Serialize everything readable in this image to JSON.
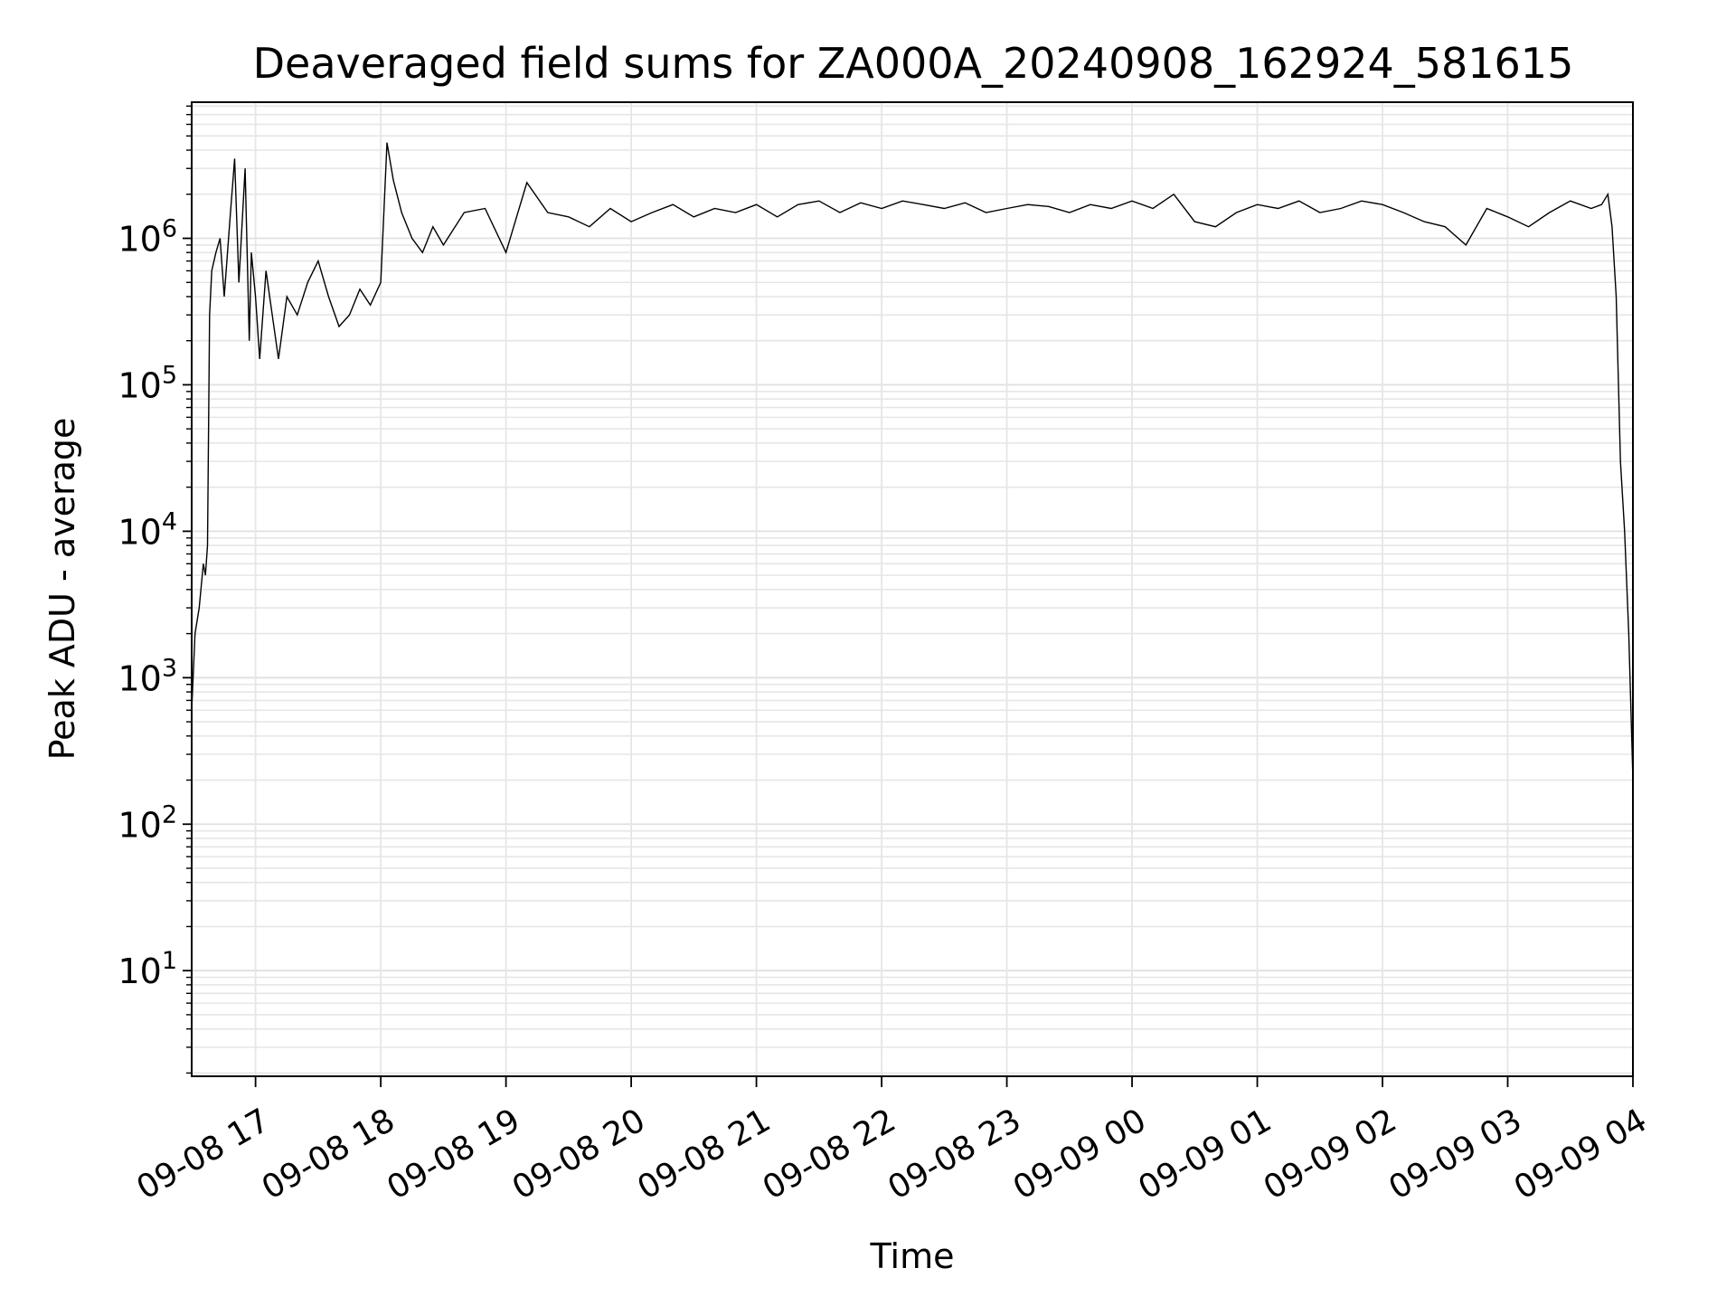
{
  "chart_data": {
    "type": "line",
    "title": "Deaveraged field sums for ZA000A_20240908_162924_581615",
    "xlabel": "Time",
    "ylabel": "Peak ADU - average",
    "y_scale": "log",
    "ylim": [
      1.9,
      8500000
    ],
    "xlim": [
      "2024-09-08T16:29:24",
      "2024-09-09T04:00:00"
    ],
    "grid": true,
    "legend": "none",
    "line_color": "#000000",
    "x_ticks": [
      {
        "value": "2024-09-08T17:00:00",
        "label": "09-08 17"
      },
      {
        "value": "2024-09-08T18:00:00",
        "label": "09-08 18"
      },
      {
        "value": "2024-09-08T19:00:00",
        "label": "09-08 19"
      },
      {
        "value": "2024-09-08T20:00:00",
        "label": "09-08 20"
      },
      {
        "value": "2024-09-08T21:00:00",
        "label": "09-08 21"
      },
      {
        "value": "2024-09-08T22:00:00",
        "label": "09-08 22"
      },
      {
        "value": "2024-09-08T23:00:00",
        "label": "09-08 23"
      },
      {
        "value": "2024-09-09T00:00:00",
        "label": "09-09 00"
      },
      {
        "value": "2024-09-09T01:00:00",
        "label": "09-09 01"
      },
      {
        "value": "2024-09-09T02:00:00",
        "label": "09-09 02"
      },
      {
        "value": "2024-09-09T03:00:00",
        "label": "09-09 03"
      },
      {
        "value": "2024-09-09T04:00:00",
        "label": "09-09 04"
      }
    ],
    "y_ticks": [
      {
        "value": 10,
        "base": "10",
        "exp": "1"
      },
      {
        "value": 100,
        "base": "10",
        "exp": "2"
      },
      {
        "value": 1000,
        "base": "10",
        "exp": "3"
      },
      {
        "value": 10000,
        "base": "10",
        "exp": "4"
      },
      {
        "value": 100000,
        "base": "10",
        "exp": "5"
      },
      {
        "value": 1000000,
        "base": "10",
        "exp": "6"
      }
    ],
    "series": [
      {
        "x": [
          "2024-09-08T16:29:24",
          "2024-09-08T16:31:00",
          "2024-09-08T16:33:00",
          "2024-09-08T16:35:00",
          "2024-09-08T16:36:00",
          "2024-09-08T16:37:00",
          "2024-09-08T16:38:00",
          "2024-09-08T16:39:00",
          "2024-09-08T16:41:00",
          "2024-09-08T16:43:00",
          "2024-09-08T16:45:00",
          "2024-09-08T16:48:00",
          "2024-09-08T16:50:00",
          "2024-09-08T16:52:00",
          "2024-09-08T16:55:00",
          "2024-09-08T16:57:00",
          "2024-09-08T16:58:00",
          "2024-09-08T17:00:00",
          "2024-09-08T17:02:00",
          "2024-09-08T17:05:00",
          "2024-09-08T17:08:00",
          "2024-09-08T17:11:00",
          "2024-09-08T17:15:00",
          "2024-09-08T17:20:00",
          "2024-09-08T17:25:00",
          "2024-09-08T17:30:00",
          "2024-09-08T17:35:00",
          "2024-09-08T17:40:00",
          "2024-09-08T17:45:00",
          "2024-09-08T17:50:00",
          "2024-09-08T17:55:00",
          "2024-09-08T18:00:00",
          "2024-09-08T18:03:00",
          "2024-09-08T18:06:00",
          "2024-09-08T18:10:00",
          "2024-09-08T18:15:00",
          "2024-09-08T18:20:00",
          "2024-09-08T18:25:00",
          "2024-09-08T18:30:00",
          "2024-09-08T18:40:00",
          "2024-09-08T18:50:00",
          "2024-09-08T19:00:00",
          "2024-09-08T19:10:00",
          "2024-09-08T19:20:00",
          "2024-09-08T19:30:00",
          "2024-09-08T19:40:00",
          "2024-09-08T19:50:00",
          "2024-09-08T20:00:00",
          "2024-09-08T20:10:00",
          "2024-09-08T20:20:00",
          "2024-09-08T20:30:00",
          "2024-09-08T20:40:00",
          "2024-09-08T20:50:00",
          "2024-09-08T21:00:00",
          "2024-09-08T21:10:00",
          "2024-09-08T21:20:00",
          "2024-09-08T21:30:00",
          "2024-09-08T21:40:00",
          "2024-09-08T21:50:00",
          "2024-09-08T22:00:00",
          "2024-09-08T22:10:00",
          "2024-09-08T22:20:00",
          "2024-09-08T22:30:00",
          "2024-09-08T22:40:00",
          "2024-09-08T22:50:00",
          "2024-09-08T23:00:00",
          "2024-09-08T23:10:00",
          "2024-09-08T23:20:00",
          "2024-09-08T23:30:00",
          "2024-09-08T23:40:00",
          "2024-09-08T23:50:00",
          "2024-09-09T00:00:00",
          "2024-09-09T00:10:00",
          "2024-09-09T00:20:00",
          "2024-09-09T00:30:00",
          "2024-09-09T00:40:00",
          "2024-09-09T00:50:00",
          "2024-09-09T01:00:00",
          "2024-09-09T01:10:00",
          "2024-09-09T01:20:00",
          "2024-09-09T01:30:00",
          "2024-09-09T01:40:00",
          "2024-09-09T01:50:00",
          "2024-09-09T02:00:00",
          "2024-09-09T02:10:00",
          "2024-09-09T02:20:00",
          "2024-09-09T02:30:00",
          "2024-09-09T02:40:00",
          "2024-09-09T02:50:00",
          "2024-09-09T03:00:00",
          "2024-09-09T03:10:00",
          "2024-09-09T03:20:00",
          "2024-09-09T03:30:00",
          "2024-09-09T03:40:00",
          "2024-09-09T03:45:00",
          "2024-09-09T03:48:00",
          "2024-09-09T03:50:00",
          "2024-09-09T03:52:00",
          "2024-09-09T03:54:00",
          "2024-09-09T03:56:00",
          "2024-09-09T03:58:00",
          "2024-09-09T04:00:00"
        ],
        "y": [
          600,
          2000,
          3000,
          6000,
          5000,
          8000,
          300000,
          600000,
          800000,
          1000000,
          400000,
          1500000,
          3500000,
          500000,
          3000000,
          200000,
          800000,
          400000,
          150000,
          600000,
          300000,
          150000,
          400000,
          300000,
          500000,
          700000,
          400000,
          250000,
          300000,
          450000,
          350000,
          500000,
          4500000,
          2500000,
          1500000,
          1000000,
          800000,
          1200000,
          900000,
          1500000,
          1600000,
          800000,
          2400000,
          1500000,
          1400000,
          1200000,
          1600000,
          1300000,
          1500000,
          1700000,
          1400000,
          1600000,
          1500000,
          1700000,
          1400000,
          1700000,
          1800000,
          1500000,
          1750000,
          1600000,
          1800000,
          1700000,
          1600000,
          1750000,
          1500000,
          1600000,
          1700000,
          1650000,
          1500000,
          1700000,
          1600000,
          1800000,
          1600000,
          2000000,
          1300000,
          1200000,
          1500000,
          1700000,
          1600000,
          1800000,
          1500000,
          1600000,
          1800000,
          1700000,
          1500000,
          1300000,
          1200000,
          900000,
          1600000,
          1400000,
          1200000,
          1500000,
          1800000,
          1600000,
          1700000,
          2000000,
          1200000,
          400000,
          30000,
          10000,
          2000,
          200
        ]
      }
    ]
  }
}
